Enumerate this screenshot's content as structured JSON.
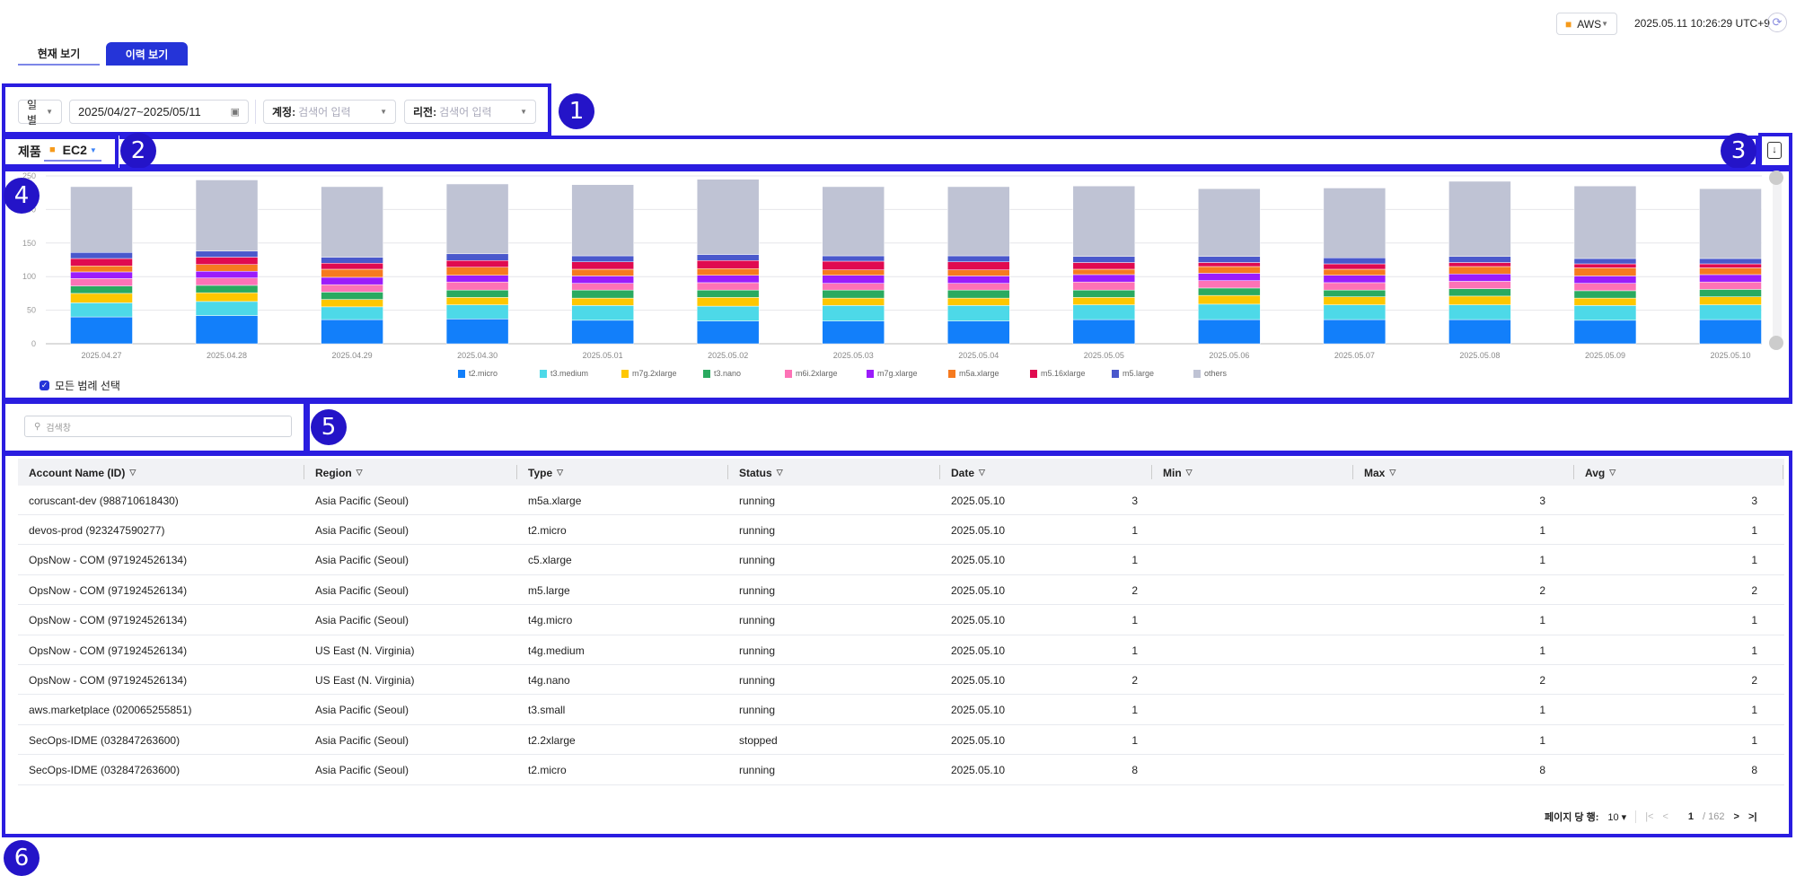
{
  "header": {
    "provider": "AWS",
    "timestamp": "2025.05.11 10:26:29 UTC+9"
  },
  "tabs": [
    {
      "label": "현재 보기"
    },
    {
      "label": "이력 보기"
    }
  ],
  "filters": {
    "period": "일별",
    "date_range": "2025/04/27~2025/05/11",
    "account_label": "계정:",
    "account_placeholder": "검색어 입력",
    "region_label": "리전:",
    "region_placeholder": "검색어 입력"
  },
  "product": {
    "label": "제품",
    "value": "EC2"
  },
  "badges": [
    "1",
    "2",
    "3",
    "4",
    "5",
    "6"
  ],
  "legend_toggle": "모든 범례 선택",
  "search": {
    "placeholder": "검색창"
  },
  "colors": {
    "accent": "#2414c8",
    "annotation": "#2a1de0"
  },
  "chart_data": {
    "type": "bar",
    "stacked": true,
    "ylim": [
      0,
      250
    ],
    "yticks": [
      "0",
      "50",
      "100",
      "150",
      "200",
      "250"
    ],
    "categories": [
      "2025.04.27",
      "2025.04.28",
      "2025.04.29",
      "2025.04.30",
      "2025.05.01",
      "2025.05.02",
      "2025.05.03",
      "2025.05.04",
      "2025.05.05",
      "2025.05.06",
      "2025.05.07",
      "2025.05.08",
      "2025.05.09",
      "2025.05.10"
    ],
    "series": [
      {
        "name": "t2.micro",
        "color": "#127ffa",
        "values": [
          40,
          42,
          36,
          37,
          35,
          34,
          34,
          34,
          36,
          36,
          36,
          36,
          35,
          36
        ]
      },
      {
        "name": "t3.medium",
        "color": "#4dd9e8",
        "values": [
          21,
          21,
          19,
          21,
          22,
          22,
          23,
          23,
          22,
          23,
          22,
          22,
          22,
          22
        ]
      },
      {
        "name": "m7g.2xlarge",
        "color": "#fec700",
        "values": [
          14,
          13,
          11,
          11,
          11,
          13,
          11,
          11,
          11,
          13,
          12,
          13,
          11,
          12
        ]
      },
      {
        "name": "t3.nano",
        "color": "#2aaa60",
        "values": [
          11,
          11,
          11,
          11,
          12,
          11,
          12,
          12,
          11,
          11,
          10,
          11,
          11,
          11
        ]
      },
      {
        "name": "m6i.2xlarge",
        "color": "#fd72b6",
        "values": [
          11,
          11,
          11,
          12,
          10,
          11,
          10,
          10,
          12,
          11,
          11,
          11,
          11,
          11
        ]
      },
      {
        "name": "m7g.xlarge",
        "color": "#9b1cfb",
        "values": [
          10,
          10,
          11,
          10,
          11,
          11,
          12,
          11,
          11,
          11,
          11,
          11,
          11,
          11
        ]
      },
      {
        "name": "m5a.xlarge",
        "color": "#f67a1f",
        "values": [
          9,
          10,
          12,
          12,
          10,
          10,
          8,
          9,
          8,
          10,
          9,
          11,
          12,
          10
        ]
      },
      {
        "name": "m5.16xlarge",
        "color": "#e00a50",
        "values": [
          11,
          11,
          9,
          10,
          11,
          12,
          13,
          12,
          10,
          6,
          8,
          6,
          6,
          6
        ]
      },
      {
        "name": "m5.large",
        "color": "#4a58cc",
        "values": [
          9,
          9,
          9,
          10,
          9,
          9,
          8,
          9,
          9,
          9,
          9,
          9,
          8,
          8
        ]
      },
      {
        "name": "others",
        "color": "#bfc3d4",
        "values": [
          98,
          106,
          105,
          104,
          106,
          112,
          103,
          103,
          105,
          101,
          104,
          112,
          108,
          104
        ]
      }
    ]
  },
  "table": {
    "columns": [
      "Account Name (ID)",
      "Region",
      "Type",
      "Status",
      "Date",
      "Min",
      "Max",
      "Avg"
    ],
    "rows": [
      [
        "coruscant-dev (988710618430)",
        "Asia Pacific (Seoul)",
        "m5a.xlarge",
        "running",
        "2025.05.10",
        "3",
        "3",
        "3"
      ],
      [
        "devos-prod (923247590277)",
        "Asia Pacific (Seoul)",
        "t2.micro",
        "running",
        "2025.05.10",
        "1",
        "1",
        "1"
      ],
      [
        "OpsNow - COM (971924526134)",
        "Asia Pacific (Seoul)",
        "c5.xlarge",
        "running",
        "2025.05.10",
        "1",
        "1",
        "1"
      ],
      [
        "OpsNow - COM (971924526134)",
        "Asia Pacific (Seoul)",
        "m5.large",
        "running",
        "2025.05.10",
        "2",
        "2",
        "2"
      ],
      [
        "OpsNow - COM (971924526134)",
        "Asia Pacific (Seoul)",
        "t4g.micro",
        "running",
        "2025.05.10",
        "1",
        "1",
        "1"
      ],
      [
        "OpsNow - COM (971924526134)",
        "US East (N. Virginia)",
        "t4g.medium",
        "running",
        "2025.05.10",
        "1",
        "1",
        "1"
      ],
      [
        "OpsNow - COM (971924526134)",
        "US East (N. Virginia)",
        "t4g.nano",
        "running",
        "2025.05.10",
        "2",
        "2",
        "2"
      ],
      [
        "aws.marketplace (020065255851)",
        "Asia Pacific (Seoul)",
        "t3.small",
        "running",
        "2025.05.10",
        "1",
        "1",
        "1"
      ],
      [
        "SecOps-IDME (032847263600)",
        "Asia Pacific (Seoul)",
        "t2.2xlarge",
        "stopped",
        "2025.05.10",
        "1",
        "1",
        "1"
      ],
      [
        "SecOps-IDME (032847263600)",
        "Asia Pacific (Seoul)",
        "t2.micro",
        "running",
        "2025.05.10",
        "8",
        "8",
        "8"
      ]
    ]
  },
  "pagination": {
    "rows_label": "페이지 당 행:",
    "rows_per_page": "10",
    "current": "1",
    "total": "/ 162"
  }
}
